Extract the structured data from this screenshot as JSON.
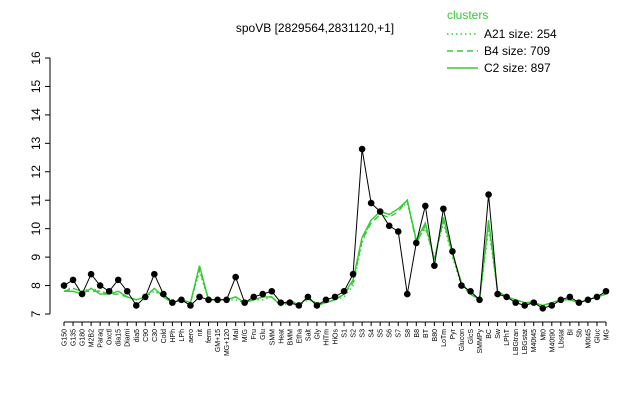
{
  "chart_data": {
    "type": "line",
    "title": "spoVB [2829564,2831120,+1]",
    "legend_title": "clusters",
    "legend_position": "top-right",
    "categories": [
      "G150",
      "G135",
      "G180",
      "M2B2",
      "Paraq",
      "Oxctl",
      "dia15",
      "Diami",
      "dia5",
      "C90",
      "C30",
      "Cold",
      "HPh",
      "LPh",
      "aero",
      "nit",
      "ferm",
      "GM+15",
      "MG+120",
      "Mal",
      "M/G",
      "Fru",
      "Glu",
      "SMM",
      "Heat",
      "BMM",
      "Etha",
      "Salt",
      "Gly",
      "HiTm",
      "HiOs",
      "S1",
      "S2",
      "S3",
      "S4",
      "S5",
      "S6",
      "S7",
      "S8",
      "B8",
      "BT",
      "B80",
      "LoTm",
      "Pyr",
      "Glucon",
      "GlcS",
      "SMMPy",
      "BC",
      "Sw",
      "LPhT",
      "LBGtran",
      "LBGstat",
      "M40t45",
      "Mt0",
      "M40t90",
      "Lbstat",
      "BI",
      "Sb",
      "M0t45",
      "Gluc",
      "MG"
    ],
    "values": [
      8.0,
      8.2,
      7.7,
      8.4,
      8.0,
      7.8,
      8.2,
      7.8,
      7.3,
      7.6,
      8.4,
      7.7,
      7.4,
      7.5,
      7.3,
      7.6,
      7.5,
      7.5,
      7.5,
      8.3,
      7.4,
      7.6,
      7.7,
      7.8,
      7.4,
      7.4,
      7.3,
      7.6,
      7.3,
      7.5,
      7.6,
      7.8,
      8.4,
      12.8,
      10.9,
      10.6,
      10.1,
      9.9,
      7.7,
      9.5,
      10.8,
      8.7,
      10.7,
      9.2,
      8.0,
      7.8,
      7.5,
      11.2,
      7.7,
      7.6,
      7.4,
      7.3,
      7.4,
      7.2,
      7.3,
      7.5,
      7.6,
      7.4,
      7.5,
      7.6,
      7.8
    ],
    "color": "#000000",
    "series": [
      {
        "name": "A21 size: 254",
        "color": "#33cc33",
        "dash": "dotted",
        "values": [
          7.9,
          7.9,
          7.8,
          7.9,
          7.8,
          7.7,
          7.8,
          7.6,
          7.5,
          7.6,
          7.8,
          7.6,
          7.5,
          7.5,
          7.4,
          8.5,
          7.5,
          7.5,
          7.5,
          7.5,
          7.4,
          7.5,
          7.5,
          7.6,
          7.3,
          7.4,
          7.3,
          7.5,
          7.4,
          7.4,
          7.5,
          7.6,
          8.0,
          9.5,
          10.3,
          10.6,
          10.5,
          10.7,
          10.9,
          9.6,
          10.0,
          9.0,
          10.2,
          9.0,
          8.0,
          7.7,
          7.5,
          10.0,
          7.8,
          7.6,
          7.5,
          7.4,
          7.4,
          7.3,
          7.4,
          7.5,
          7.5,
          7.4,
          7.5,
          7.6,
          7.7
        ]
      },
      {
        "name": "B4 size: 709",
        "color": "#33cc33",
        "dash": "dashed",
        "values": [
          7.8,
          7.9,
          7.8,
          7.8,
          7.8,
          7.7,
          7.7,
          7.6,
          7.5,
          7.6,
          7.9,
          7.6,
          7.4,
          7.5,
          7.4,
          8.6,
          7.5,
          7.5,
          7.5,
          7.6,
          7.4,
          7.5,
          7.6,
          7.6,
          7.3,
          7.4,
          7.3,
          7.6,
          7.3,
          7.4,
          7.5,
          7.7,
          8.1,
          9.6,
          10.2,
          10.5,
          10.4,
          10.6,
          11.0,
          9.5,
          10.1,
          8.9,
          10.3,
          9.1,
          8.1,
          7.7,
          7.5,
          10.2,
          7.8,
          7.6,
          7.5,
          7.4,
          7.4,
          7.3,
          7.4,
          7.5,
          7.5,
          7.4,
          7.5,
          7.6,
          7.7
        ]
      },
      {
        "name": "C2 size: 897",
        "color": "#33cc33",
        "dash": "solid",
        "values": [
          7.8,
          7.8,
          7.7,
          7.9,
          7.7,
          7.7,
          7.8,
          7.6,
          7.5,
          7.6,
          7.9,
          7.6,
          7.4,
          7.5,
          7.4,
          8.7,
          7.5,
          7.5,
          7.5,
          7.6,
          7.4,
          7.5,
          7.6,
          7.6,
          7.3,
          7.5,
          7.3,
          7.6,
          7.3,
          7.4,
          7.5,
          7.7,
          8.2,
          9.7,
          10.3,
          10.6,
          10.5,
          10.7,
          11.0,
          9.6,
          10.2,
          8.9,
          10.4,
          9.1,
          8.1,
          7.7,
          7.5,
          10.3,
          7.8,
          7.6,
          7.5,
          7.4,
          7.4,
          7.3,
          7.4,
          7.5,
          7.5,
          7.4,
          7.5,
          7.6,
          7.7
        ]
      }
    ],
    "ylim": [
      7,
      16
    ],
    "yticks": [
      7,
      8,
      9,
      10,
      11,
      12,
      13,
      14,
      15,
      16
    ]
  }
}
